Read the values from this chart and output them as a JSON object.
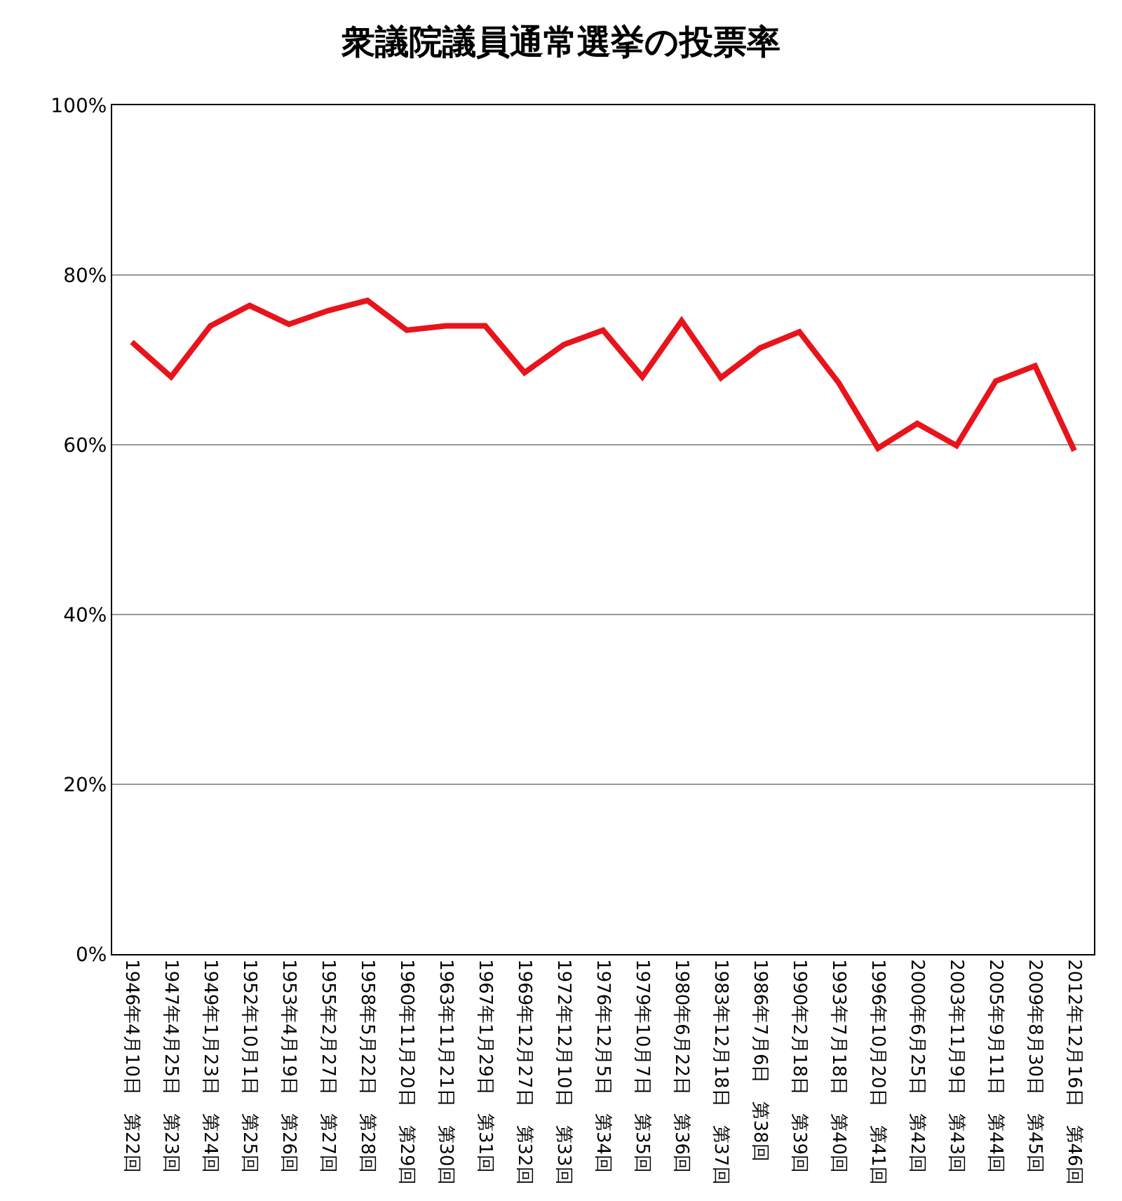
{
  "chart_data": {
    "type": "line",
    "title": "衆議院議員通常選挙の投票率",
    "categories": [
      "1946年4月10日　第22回",
      "1947年4月25日　第23回",
      "1949年1月23日　第24回",
      "1952年10月1日　第25回",
      "1953年4月19日　第26回",
      "1955年2月27日　第27回",
      "1958年5月22日　第28回",
      "1960年11月20日　第29回",
      "1963年11月21日　第30回",
      "1967年1月29日　第31回",
      "1969年12月27日　第32回",
      "1972年12月10日　第33回",
      "1976年12月5日　第34回",
      "1979年10月7日　第35回",
      "1980年6月22日　第36回",
      "1983年12月18日　第37回",
      "1986年7月6日　第38回",
      "1990年2月18日　第39回",
      "1993年7月18日　第40回",
      "1996年10月20日　第41回",
      "2000年6月25日　第42回",
      "2003年11月9日　第43回",
      "2005年9月11日　第44回",
      "2009年8月30日　第45回",
      "2012年12月16日　第46回"
    ],
    "series": [
      {
        "color": "#e8141c",
        "values": [
          72.1,
          68.0,
          74.0,
          76.4,
          74.2,
          75.8,
          77.0,
          73.5,
          74.0,
          74.0,
          68.5,
          71.8,
          73.5,
          68.0,
          74.6,
          67.9,
          71.4,
          73.3,
          67.3,
          59.6,
          62.5,
          59.9,
          67.5,
          69.3,
          59.3
        ]
      }
    ],
    "ylim": [
      0,
      100
    ],
    "yticks": [
      {
        "value": 0,
        "label": "0%"
      },
      {
        "value": 20,
        "label": "20%"
      },
      {
        "value": 40,
        "label": "40%"
      },
      {
        "value": 60,
        "label": "60%"
      },
      {
        "value": 80,
        "label": "80%"
      },
      {
        "value": 100,
        "label": "100%"
      }
    ],
    "grid": "y",
    "marker": "none",
    "line_style": "solid"
  }
}
